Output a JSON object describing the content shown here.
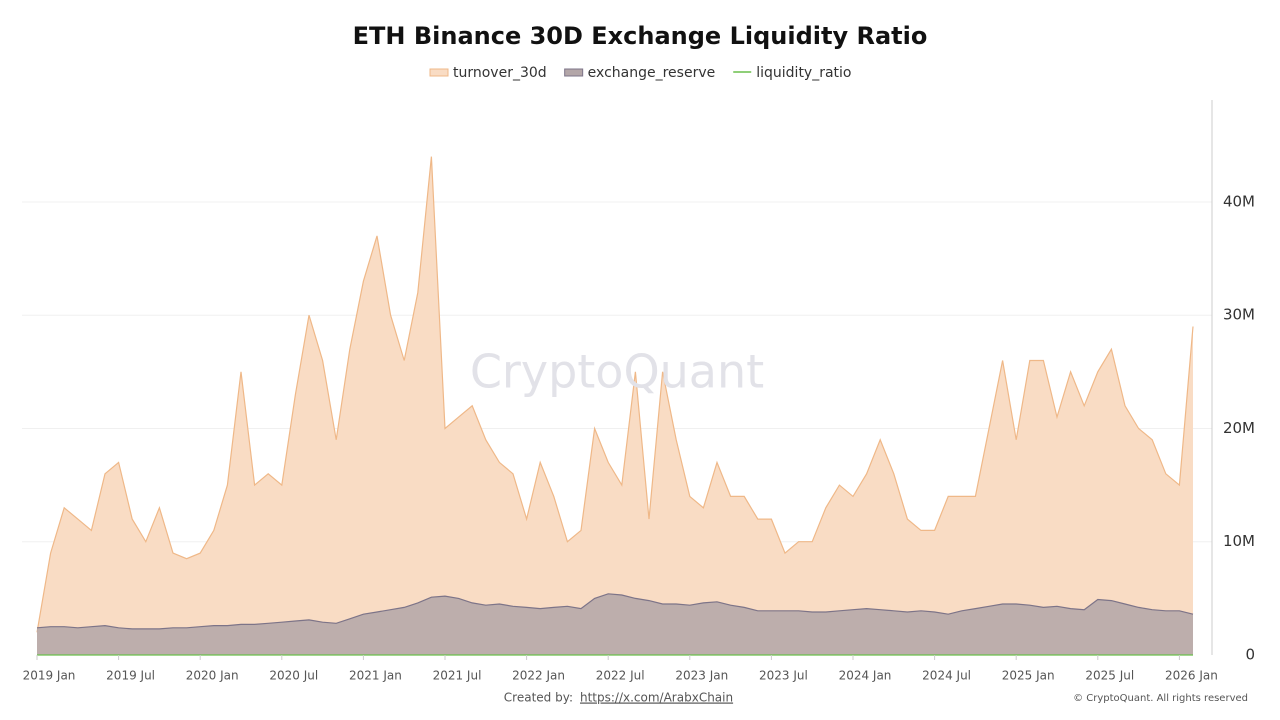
{
  "chart_data": {
    "type": "area",
    "title": "ETH Binance 30D Exchange Liquidity Ratio",
    "watermark": "CryptoQuant",
    "credit_label": "Created by:",
    "credit_link": "https://x.com/ArabxChain",
    "copyright": "© CryptoQuant. All rights reserved",
    "x": [
      "2019-01",
      "2019-02",
      "2019-03",
      "2019-04",
      "2019-05",
      "2019-06",
      "2019-07",
      "2019-08",
      "2019-09",
      "2019-10",
      "2019-11",
      "2019-12",
      "2020-01",
      "2020-02",
      "2020-03",
      "2020-04",
      "2020-05",
      "2020-06",
      "2020-07",
      "2020-08",
      "2020-09",
      "2020-10",
      "2020-11",
      "2020-12",
      "2021-01",
      "2021-02",
      "2021-03",
      "2021-04",
      "2021-05",
      "2021-06",
      "2021-07",
      "2021-08",
      "2021-09",
      "2021-10",
      "2021-11",
      "2021-12",
      "2022-01",
      "2022-02",
      "2022-03",
      "2022-04",
      "2022-05",
      "2022-06",
      "2022-07",
      "2022-08",
      "2022-09",
      "2022-10",
      "2022-11",
      "2022-12",
      "2023-01",
      "2023-02",
      "2023-03",
      "2023-04",
      "2023-05",
      "2023-06",
      "2023-07",
      "2023-08",
      "2023-09",
      "2023-10",
      "2023-11",
      "2023-12",
      "2024-01",
      "2024-02",
      "2024-03",
      "2024-04",
      "2024-05",
      "2024-06",
      "2024-07",
      "2024-08",
      "2024-09",
      "2024-10",
      "2024-11",
      "2024-12",
      "2025-01",
      "2025-02",
      "2025-03",
      "2025-04",
      "2025-05",
      "2025-06",
      "2025-07",
      "2025-08",
      "2025-09",
      "2025-10",
      "2025-11",
      "2025-12",
      "2026-01",
      "2026-02"
    ],
    "xticks": [
      {
        "value": "2019-01",
        "label": "2019 Jan"
      },
      {
        "value": "2019-07",
        "label": "2019 Jul"
      },
      {
        "value": "2020-01",
        "label": "2020 Jan"
      },
      {
        "value": "2020-07",
        "label": "2020 Jul"
      },
      {
        "value": "2021-01",
        "label": "2021 Jan"
      },
      {
        "value": "2021-07",
        "label": "2021 Jul"
      },
      {
        "value": "2022-01",
        "label": "2022 Jan"
      },
      {
        "value": "2022-07",
        "label": "2022 Jul"
      },
      {
        "value": "2023-01",
        "label": "2023 Jan"
      },
      {
        "value": "2023-07",
        "label": "2023 Jul"
      },
      {
        "value": "2024-01",
        "label": "2024 Jan"
      },
      {
        "value": "2024-07",
        "label": "2024 Jul"
      },
      {
        "value": "2025-01",
        "label": "2025 Jan"
      },
      {
        "value": "2025-07",
        "label": "2025 Jul"
      },
      {
        "value": "2026-01",
        "label": "2026 Jan"
      }
    ],
    "ylim": [
      0,
      49000000
    ],
    "yticks": [
      0,
      {
        "value": 10000000,
        "label": "10M"
      },
      {
        "value": 20000000,
        "label": "20M"
      },
      {
        "value": 30000000,
        "label": "30M"
      },
      {
        "value": 40000000,
        "label": "40M"
      }
    ],
    "grid": true,
    "series": [
      {
        "name": "turnover_30d",
        "color": "#f9dcc4",
        "stroke": "#efb888",
        "values": [
          2000000,
          9000000,
          13000000,
          12000000,
          11000000,
          16000000,
          17000000,
          12000000,
          10000000,
          13000000,
          9000000,
          8500000,
          9000000,
          11000000,
          15000000,
          25000000,
          15000000,
          16000000,
          15000000,
          23000000,
          30000000,
          26000000,
          19000000,
          27000000,
          33000000,
          37000000,
          30000000,
          26000000,
          32000000,
          44000000,
          20000000,
          21000000,
          22000000,
          19000000,
          17000000,
          16000000,
          12000000,
          17000000,
          14000000,
          10000000,
          11000000,
          20000000,
          17000000,
          15000000,
          25000000,
          12000000,
          25000000,
          19000000,
          14000000,
          13000000,
          17000000,
          14000000,
          14000000,
          12000000,
          12000000,
          9000000,
          10000000,
          10000000,
          13000000,
          15000000,
          14000000,
          16000000,
          19000000,
          16000000,
          12000000,
          11000000,
          11000000,
          14000000,
          14000000,
          14000000,
          20000000,
          26000000,
          19000000,
          26000000,
          26000000,
          21000000,
          25000000,
          22000000,
          25000000,
          27000000,
          22000000,
          20000000,
          19000000,
          16000000,
          15000000,
          29000000
        ]
      },
      {
        "name": "exchange_reserve",
        "color": "#b3a6a8",
        "stroke": "#7d7488",
        "values": [
          2400000,
          2500000,
          2500000,
          2400000,
          2500000,
          2600000,
          2400000,
          2300000,
          2300000,
          2300000,
          2400000,
          2400000,
          2500000,
          2600000,
          2600000,
          2700000,
          2700000,
          2800000,
          2900000,
          3000000,
          3100000,
          2900000,
          2800000,
          3200000,
          3600000,
          3800000,
          4000000,
          4200000,
          4600000,
          5100000,
          5200000,
          5000000,
          4600000,
          4400000,
          4500000,
          4300000,
          4200000,
          4100000,
          4200000,
          4300000,
          4100000,
          5000000,
          5400000,
          5300000,
          5000000,
          4800000,
          4500000,
          4500000,
          4400000,
          4600000,
          4700000,
          4400000,
          4200000,
          3900000,
          3900000,
          3900000,
          3900000,
          3800000,
          3800000,
          3900000,
          4000000,
          4100000,
          4000000,
          3900000,
          3800000,
          3900000,
          3800000,
          3600000,
          3900000,
          4100000,
          4300000,
          4500000,
          4500000,
          4400000,
          4200000,
          4300000,
          4100000,
          4000000,
          4900000,
          4800000,
          4500000,
          4200000,
          4000000,
          3900000,
          3900000,
          3600000
        ]
      },
      {
        "name": "liquidity_ratio",
        "color": "#6abf4b",
        "values": [
          0,
          0,
          0,
          0,
          0,
          0,
          0,
          0,
          0,
          0,
          0,
          0,
          0,
          0,
          0,
          0,
          0,
          0,
          0,
          0,
          0,
          0,
          0,
          0,
          0,
          0,
          0,
          0,
          0,
          0,
          0,
          0,
          0,
          0,
          0,
          0,
          0,
          0,
          0,
          0,
          0,
          0,
          0,
          0,
          0,
          0,
          0,
          0,
          0,
          0,
          0,
          0,
          0,
          0,
          0,
          0,
          0,
          0,
          0,
          0,
          0,
          0,
          0,
          0,
          0,
          0,
          0,
          0,
          0,
          0,
          0,
          0,
          0,
          0,
          0,
          0,
          0,
          0,
          0,
          0,
          0,
          0,
          0,
          0,
          0,
          0
        ]
      }
    ]
  }
}
